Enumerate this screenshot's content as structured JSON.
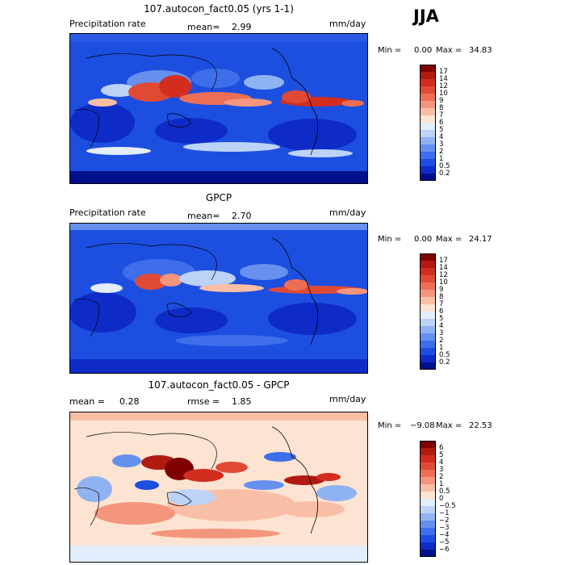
{
  "season": "JJA",
  "panels": [
    {
      "title": "107.autocon_fact0.05 (yrs 1-1)",
      "left_label": "Precipitation rate",
      "mean_label": "mean=",
      "mean_value": "2.99",
      "units": "mm/day",
      "min_label": "Min =",
      "min_value": "0.00",
      "max_label": "Max =",
      "max_value": "34.83",
      "colorbar": {
        "labels": [
          "17",
          "14",
          "12",
          "10",
          "9",
          "8",
          "7",
          "6",
          "5",
          "4",
          "3",
          "2",
          "1",
          "0.5",
          "0.2"
        ],
        "colors": [
          "#800000",
          "#b01a10",
          "#d22d1f",
          "#e04a35",
          "#ec6e55",
          "#f4967d",
          "#f9bfa6",
          "#fde3d2",
          "#e3edfb",
          "#bcd3f7",
          "#8fb2f2",
          "#6590ee",
          "#3e6ee9",
          "#1c4fe0",
          "#0f2bc7",
          "#00108c"
        ]
      }
    },
    {
      "title": "GPCP",
      "left_label": "Precipitation rate",
      "mean_label": "mean=",
      "mean_value": "2.70",
      "units": "mm/day",
      "min_label": "Min =",
      "min_value": "0.00",
      "max_label": "Max =",
      "max_value": "24.17",
      "colorbar": {
        "labels": [
          "17",
          "14",
          "12",
          "10",
          "9",
          "8",
          "7",
          "6",
          "5",
          "4",
          "3",
          "2",
          "1",
          "0.5",
          "0.2"
        ],
        "colors": [
          "#800000",
          "#b01a10",
          "#d22d1f",
          "#e04a35",
          "#ec6e55",
          "#f4967d",
          "#f9bfa6",
          "#fde3d2",
          "#e3edfb",
          "#bcd3f7",
          "#8fb2f2",
          "#6590ee",
          "#3e6ee9",
          "#1c4fe0",
          "#0f2bc7",
          "#00108c"
        ]
      }
    },
    {
      "title": "107.autocon_fact0.05 - GPCP",
      "mean_label": "mean =",
      "mean_value": "0.28",
      "rmse_label": "rmse =",
      "rmse_value": "1.85",
      "units": "mm/day",
      "min_label": "Min =",
      "min_value": "−9.08",
      "max_label": "Max =",
      "max_value": "22.53",
      "colorbar": {
        "labels": [
          "6",
          "5",
          "4",
          "3",
          "2",
          "1",
          "0.5",
          "0",
          "−0.5",
          "−1",
          "−2",
          "−3",
          "−4",
          "−5",
          "−6"
        ],
        "colors": [
          "#800000",
          "#b01a10",
          "#d22d1f",
          "#e04a35",
          "#ec6e55",
          "#f4967d",
          "#f9bfa6",
          "#fde3d2",
          "#e3edfb",
          "#bcd3f7",
          "#8fb2f2",
          "#6590ee",
          "#3e6ee9",
          "#1c4fe0",
          "#0f2bc7",
          "#00108c"
        ]
      }
    }
  ],
  "chart_data": [
    {
      "type": "heatmap",
      "title": "107.autocon_fact0.05 (yrs 1-1)",
      "variable": "Precipitation rate",
      "units": "mm/day",
      "mean": 2.99,
      "min": 0.0,
      "max": 34.83,
      "levels": [
        0.2,
        0.5,
        1,
        2,
        3,
        4,
        5,
        6,
        7,
        8,
        9,
        10,
        12,
        14,
        17
      ]
    },
    {
      "type": "heatmap",
      "title": "GPCP",
      "variable": "Precipitation rate",
      "units": "mm/day",
      "mean": 2.7,
      "min": 0.0,
      "max": 24.17,
      "levels": [
        0.2,
        0.5,
        1,
        2,
        3,
        4,
        5,
        6,
        7,
        8,
        9,
        10,
        12,
        14,
        17
      ]
    },
    {
      "type": "heatmap",
      "title": "107.autocon_fact0.05 - GPCP",
      "units": "mm/day",
      "mean": 0.28,
      "rmse": 1.85,
      "min": -9.08,
      "max": 22.53,
      "levels": [
        -6,
        -5,
        -4,
        -3,
        -2,
        -1,
        -0.5,
        0,
        0.5,
        1,
        2,
        3,
        4,
        5,
        6
      ]
    }
  ]
}
